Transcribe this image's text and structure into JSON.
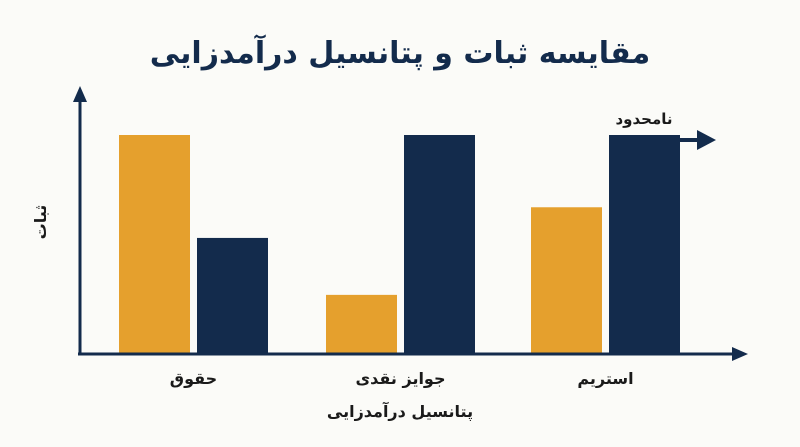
{
  "chart_data": {
    "type": "bar",
    "title": "مقایسه ثبات و پتانسیل درآمدزایی",
    "xlabel": "پتانسیل درآمدزایی",
    "ylabel": "ثبات",
    "categories": [
      "حقوق",
      "جوایز نقدی",
      "استریم"
    ],
    "series": [
      {
        "values": [
          100,
          27,
          67
        ],
        "color": "#e5a02d"
      },
      {
        "values": [
          53,
          100,
          100
        ],
        "color": "#132b4c"
      }
    ],
    "ylim": [
      0,
      100
    ],
    "grid": false,
    "annotation": {
      "text": "نامحدود",
      "category_index": 2,
      "series_index": 1
    },
    "colors": {
      "accent_orange": "#e5a02d",
      "accent_navy": "#132b4c",
      "axis": "#132b4c"
    }
  }
}
